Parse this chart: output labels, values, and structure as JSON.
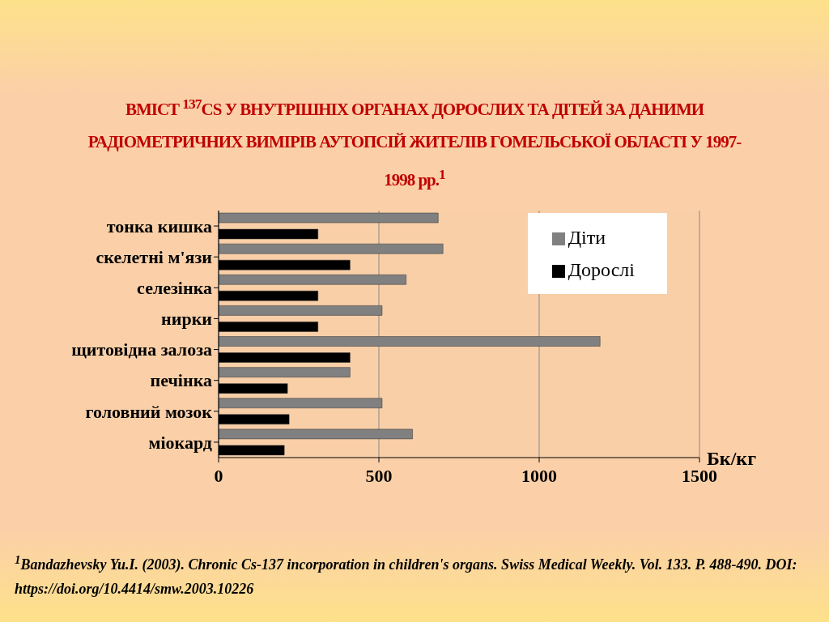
{
  "chart_data": {
    "type": "bar",
    "orientation": "horizontal",
    "title": "ВМІСТ $^{137}$CS У ВНУТРІШНІХ ОРГАНАХ ДОРОСЛИХ ТА ДІТЕЙ ЗА ДАНИМИ РАДІОМЕТРИЧНИХ ВИМІРІВ АУТОПСІЙ ЖИТЕЛІВ ГОМЕЛЬСЬКОЇ ОБЛАСТІ У 1997-1998 рр.$^{1}$",
    "categories": [
      "тонка кишка",
      "скелетні м'язи",
      "селезінка",
      "нирки",
      "щитовідна залоза",
      "печінка",
      "головний мозок",
      "міокард"
    ],
    "series": [
      {
        "name": "Діти",
        "color": "#808080",
        "values": [
          685,
          700,
          585,
          510,
          1190,
          410,
          510,
          605
        ]
      },
      {
        "name": "Дорослі",
        "color": "#000000",
        "values": [
          310,
          410,
          310,
          310,
          410,
          215,
          220,
          205
        ]
      }
    ],
    "xlabel": "Бк/кг",
    "xlim": [
      0,
      1500
    ],
    "xticks": [
      0,
      500,
      1000,
      1500
    ],
    "grid": "x",
    "legend": "top right",
    "annotations": [
      "$^{1}$Bandazhevsky Yu.I. (2003). Chronic Cs-137 incorporation in children's organs. Swiss Medical Weekly. Vol. 133. P. 488-490. DOI: https://doi.org/10.4414/smw.2003.10226"
    ]
  }
}
